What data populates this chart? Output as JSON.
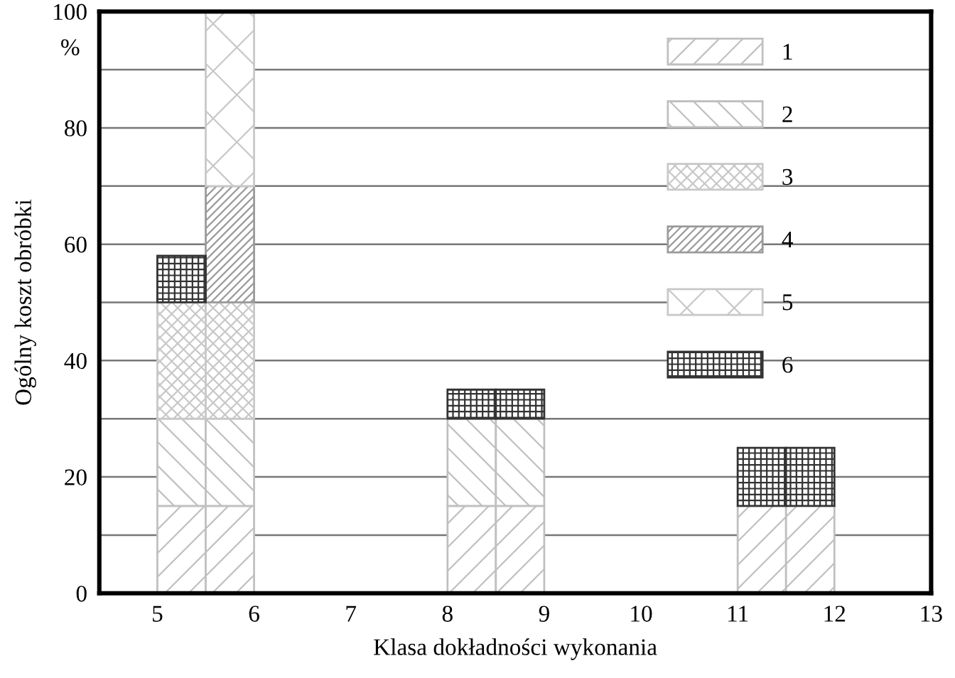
{
  "chart_data": {
    "type": "bar",
    "xlabel": "Klasa dokładności wykonania",
    "ylabel": "Ogólny koszt obróbki",
    "annotations": [
      "%"
    ],
    "series": [
      {
        "name": "1",
        "color": "#c0c0c0",
        "x": [
          5.25,
          5.75,
          8.25,
          8.75,
          11.25,
          11.75
        ],
        "values": [
          15,
          15,
          15,
          15,
          15,
          15
        ],
        "base": [
          0,
          0,
          0,
          0,
          0,
          0
        ]
      },
      {
        "name": "2",
        "color": "#c0c0c0",
        "x": [
          5.25,
          5.75,
          8.25,
          8.75
        ],
        "values": [
          15,
          15,
          15,
          15
        ],
        "base": [
          15,
          15,
          15,
          15
        ]
      },
      {
        "name": "3",
        "color": "#c8c8c8",
        "x": [
          5.25,
          5.75
        ],
        "values": [
          20,
          20
        ],
        "base": [
          30,
          30
        ]
      },
      {
        "name": "4",
        "color": "#9a9a9a",
        "x": [
          5.75
        ],
        "values": [
          20
        ],
        "base": [
          50
        ]
      },
      {
        "name": "5",
        "color": "#c8c8c8",
        "x": [
          5.75
        ],
        "values": [
          30
        ],
        "base": [
          70
        ]
      },
      {
        "name": "6",
        "color": "#333333",
        "x": [
          5.25,
          8.25,
          8.75,
          11.25,
          11.75
        ],
        "values": [
          8,
          5,
          5,
          10,
          10
        ],
        "base": [
          50,
          30,
          30,
          15,
          15
        ]
      }
    ],
    "xlim": [
      4.4,
      13
    ],
    "xticks": [
      5,
      6,
      7,
      8,
      9,
      10,
      11,
      12,
      13
    ],
    "ylim": [
      0,
      100
    ],
    "yticks": [
      0,
      {
        "value": 10,
        "label": null
      },
      20,
      {
        "value": 30,
        "label": null
      },
      40,
      {
        "value": 50,
        "label": null
      },
      60,
      {
        "value": 70,
        "label": null
      },
      80,
      {
        "value": 90,
        "label": null
      },
      100
    ],
    "grid": "y",
    "legend": "top right"
  }
}
